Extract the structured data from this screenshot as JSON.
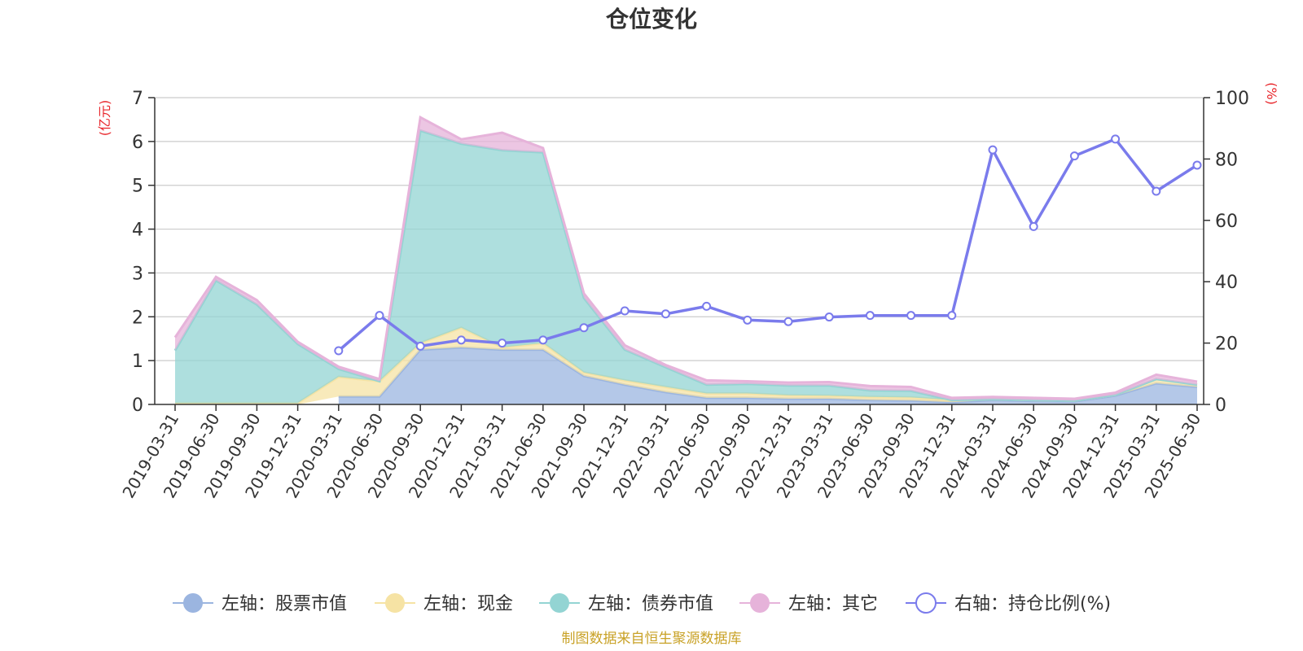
{
  "chart_data": {
    "type": "area",
    "title": "仓位变化",
    "left_unit": "(亿元)",
    "right_unit": "(%)",
    "ylim_left": [
      0,
      7
    ],
    "ylim_right": [
      0,
      100
    ],
    "left_ticks": [
      "0",
      "1",
      "2",
      "3",
      "4",
      "5",
      "6",
      "7"
    ],
    "right_ticks": [
      "0",
      "20",
      "40",
      "60",
      "80",
      "100"
    ],
    "grid": true,
    "legend_position": "bottom",
    "categories": [
      "2019-03-31",
      "2019-06-30",
      "2019-09-30",
      "2019-12-31",
      "2020-03-31",
      "2020-06-30",
      "2020-09-30",
      "2020-12-31",
      "2021-03-31",
      "2021-06-30",
      "2021-09-30",
      "2021-12-31",
      "2022-03-31",
      "2022-06-30",
      "2022-09-30",
      "2022-12-31",
      "2023-03-31",
      "2023-06-30",
      "2023-09-30",
      "2023-12-31",
      "2024-03-31",
      "2024-06-30",
      "2024-09-30",
      "2024-12-31",
      "2025-03-31",
      "2025-06-30"
    ],
    "series": [
      {
        "name": "左轴：股票市值",
        "axis": "left",
        "color": "#9bb5e0",
        "values": [
          null,
          null,
          null,
          null,
          0.18,
          0.18,
          1.25,
          1.3,
          1.25,
          1.25,
          0.65,
          0.45,
          0.28,
          0.15,
          0.15,
          0.13,
          0.13,
          0.1,
          0.09,
          0.05,
          0.1,
          0.08,
          0.07,
          0.2,
          0.48,
          0.4
        ]
      },
      {
        "name": "左轴：现金",
        "axis": "left",
        "color": "#f6e3a4",
        "values": [
          0.03,
          0.03,
          0.03,
          0.03,
          0.45,
          0.35,
          0.15,
          0.45,
          0.05,
          0.15,
          0.08,
          0.1,
          0.12,
          0.1,
          0.1,
          0.08,
          0.07,
          0.07,
          0.07,
          0.05,
          0.02,
          0.02,
          0.02,
          0.02,
          0.1,
          0.05
        ]
      },
      {
        "name": "左轴：债券市值",
        "axis": "left",
        "color": "#93d4d3",
        "values": [
          1.2,
          2.8,
          2.25,
          1.35,
          0.18,
          0.0,
          4.85,
          4.2,
          4.5,
          4.35,
          1.7,
          0.7,
          0.45,
          0.2,
          0.22,
          0.22,
          0.23,
          0.15,
          0.15,
          0.0,
          0.0,
          0.0,
          0.0,
          0.0,
          0.0,
          0.0
        ]
      },
      {
        "name": "左轴：其它",
        "axis": "left",
        "color": "#e6b3da",
        "values": [
          0.3,
          0.08,
          0.1,
          0.05,
          0.05,
          0.05,
          0.3,
          0.1,
          0.4,
          0.1,
          0.1,
          0.1,
          0.05,
          0.1,
          0.06,
          0.07,
          0.08,
          0.1,
          0.09,
          0.05,
          0.05,
          0.05,
          0.04,
          0.05,
          0.1,
          0.07
        ]
      },
      {
        "name": "右轴：持仓比例(%)",
        "axis": "right",
        "color": "#7a7bec",
        "type": "line",
        "values": [
          null,
          null,
          null,
          null,
          17.5,
          29,
          19,
          21,
          20,
          21,
          25,
          30.5,
          29.5,
          32,
          27.5,
          27,
          28.5,
          29,
          29,
          29,
          83,
          58,
          81,
          86.5,
          69.5,
          78
        ]
      }
    ]
  },
  "source": "制图数据来自恒生聚源数据库"
}
